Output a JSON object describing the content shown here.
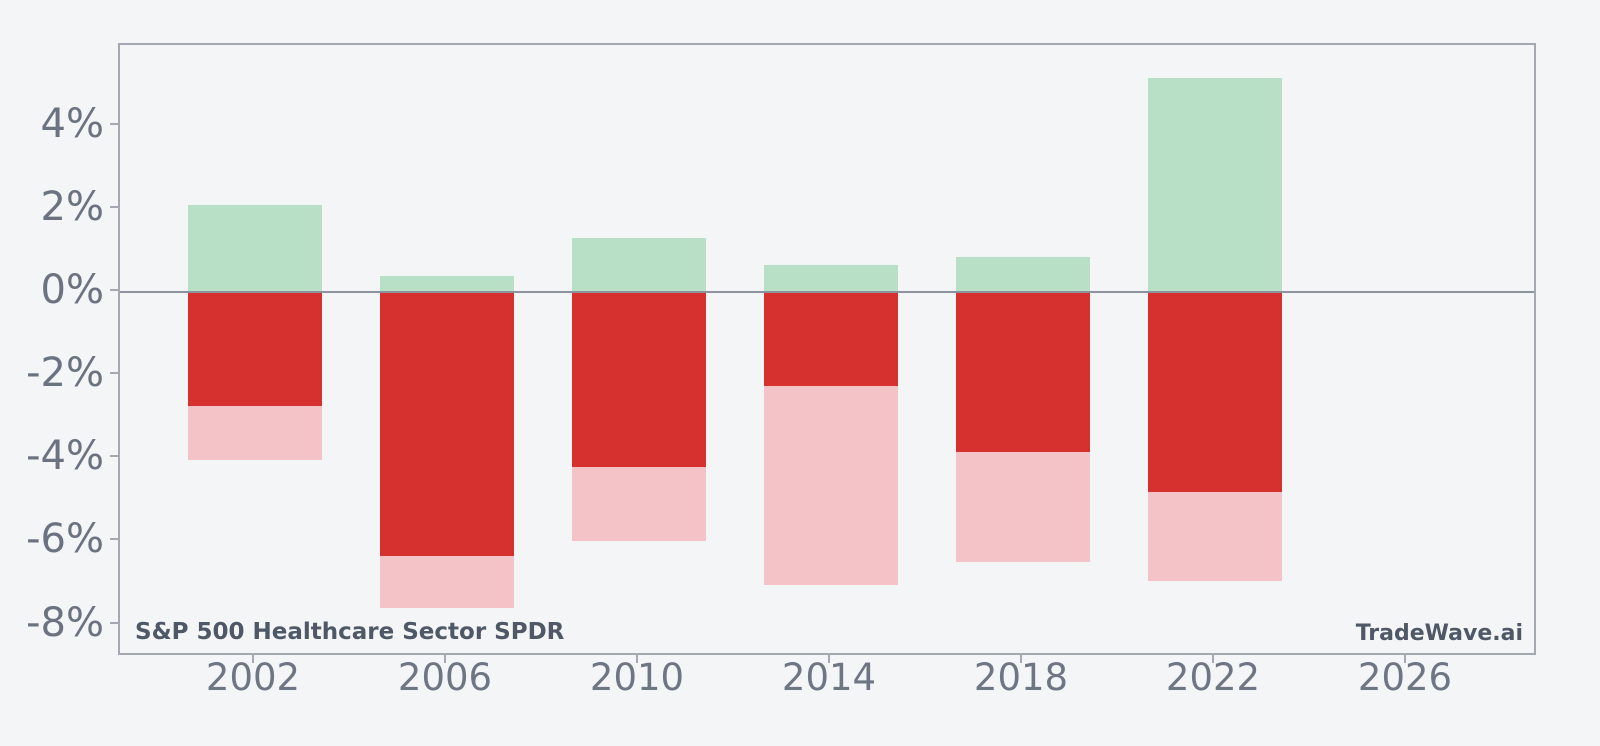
{
  "chart_data": {
    "type": "bar",
    "subtype": "seasonal-gain-loss-stacked",
    "title": "",
    "annotation_left": "S&P 500 Healthcare Sector SPDR",
    "annotation_right": "TradeWave.ai",
    "categories": [
      "2002",
      "2006",
      "2010",
      "2014",
      "2018",
      "2022",
      "2026"
    ],
    "series": [
      {
        "name": "gain",
        "color": "#b7e0c6",
        "values": [
          2.1,
          0.4,
          1.3,
          0.65,
          0.85,
          5.15,
          null
        ]
      },
      {
        "name": "loss",
        "color": "#d7312f",
        "values": [
          -2.75,
          -6.35,
          -4.2,
          -2.25,
          -3.85,
          -4.8,
          null
        ]
      },
      {
        "name": "extended-loss",
        "color": "#f3c3c8",
        "values": [
          -4.05,
          -7.6,
          -6.0,
          -7.05,
          -6.5,
          -6.95,
          null
        ]
      }
    ],
    "ytick_labels": [
      "4%",
      "2%",
      "0%",
      "-2%",
      "-4%",
      "-6%",
      "-8%"
    ],
    "ytick_values": [
      4,
      2,
      0,
      -2,
      -4,
      -6,
      -8
    ],
    "ylim": [
      -8.78,
      5.95
    ],
    "xlabel": "",
    "ylabel": "",
    "grid": false,
    "zero_line": true,
    "legend": "none",
    "colors": {
      "background": "#f4f5f7",
      "spine": "#a4a9b1",
      "zero_line": "#8d939c",
      "tick_text": "#6b7380",
      "annotation_text": "#4e5866"
    }
  }
}
